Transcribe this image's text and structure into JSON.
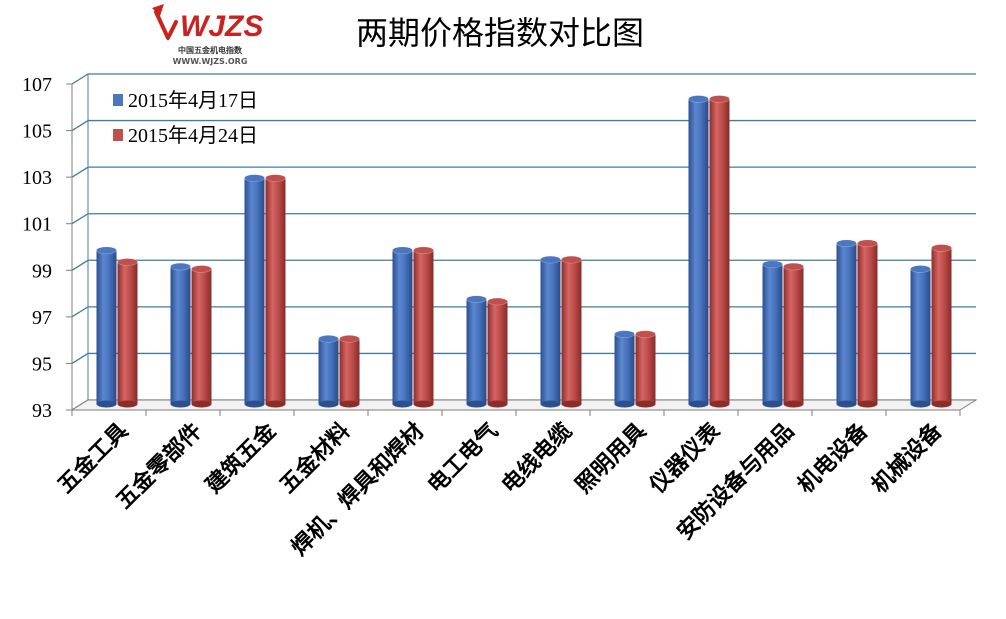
{
  "logo": {
    "name": "logo-mark",
    "brand": "WJZS",
    "subtitle": "中国五金机电指数",
    "url": "WWW.WJZS.ORG"
  },
  "chart_data": {
    "type": "bar",
    "title": "两期价格指数对比图",
    "categories": [
      "五金工具",
      "五金零部件",
      "建筑五金",
      "五金材料",
      "焊机、焊具和焊材",
      "电工电气",
      "电线电缆",
      "照明用具",
      "仪器仪表",
      "安防设备与用品",
      "机电设备",
      "机械设备"
    ],
    "series": [
      {
        "name": "2015年4月17日",
        "color": "#4a77c0",
        "values": [
          99.6,
          98.9,
          102.7,
          95.8,
          99.6,
          97.5,
          99.2,
          96.0,
          106.1,
          99.0,
          99.9,
          98.8
        ]
      },
      {
        "name": "2015年4月24日",
        "color": "#c0504d",
        "values": [
          99.1,
          98.8,
          102.7,
          95.8,
          99.6,
          97.4,
          99.2,
          96.0,
          106.1,
          98.9,
          99.9,
          99.7
        ]
      }
    ],
    "yticks": [
      "93",
      "95",
      "97",
      "99",
      "101",
      "103",
      "105",
      "107"
    ],
    "ylim": [
      93,
      107
    ],
    "grid": true,
    "legend": "top-left"
  }
}
